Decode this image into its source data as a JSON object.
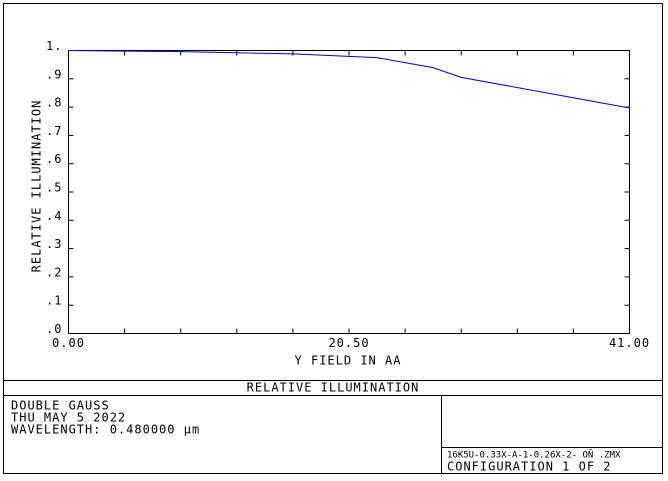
{
  "chart_data": {
    "type": "line",
    "title": "RELATIVE ILLUMINATION",
    "xlabel": "Y FIELD IN  AA",
    "ylabel": "RELATIVE ILLUMINATION",
    "x": [
      0,
      8.2,
      16.4,
      22.5,
      26.6,
      28.7,
      41
    ],
    "series": [
      {
        "name": "RELATIVE ILLUMINATION",
        "color": "#0000cc",
        "values": [
          1.0,
          0.996,
          0.988,
          0.975,
          0.94,
          0.905,
          0.797
        ]
      }
    ],
    "xlim": [
      0,
      41
    ],
    "ylim": [
      0,
      1
    ],
    "xticks": [
      {
        "value": 0,
        "label": "0.00"
      },
      {
        "value": 20.5,
        "label": "20.50"
      },
      {
        "value": 41,
        "label": "41.00"
      }
    ],
    "xminor_ticks": [
      4.1,
      8.2,
      12.3,
      16.4,
      24.6,
      28.7,
      32.8,
      36.9
    ],
    "yticks": [
      {
        "value": 0,
        "label": ".0"
      },
      {
        "value": 0.1,
        "label": ".1"
      },
      {
        "value": 0.2,
        "label": ".2"
      },
      {
        "value": 0.3,
        "label": ".3"
      },
      {
        "value": 0.4,
        "label": ".4"
      },
      {
        "value": 0.5,
        "label": ".5"
      },
      {
        "value": 0.6,
        "label": ".6"
      },
      {
        "value": 0.7,
        "label": ".7"
      },
      {
        "value": 0.8,
        "label": ".8"
      },
      {
        "value": 0.9,
        "label": ".9"
      },
      {
        "value": 1,
        "label": "1."
      }
    ],
    "info": {
      "lens": "DOUBLE GAUSS",
      "date": "THU MAY 5 2022",
      "wavelength": "WAVELENGTH: 0.480000 µm",
      "file": "16K5U-0.33X-A-1-0.26X-2- OÑ   .ZMX",
      "configuration": "CONFIGURATION 1 OF 2"
    }
  }
}
